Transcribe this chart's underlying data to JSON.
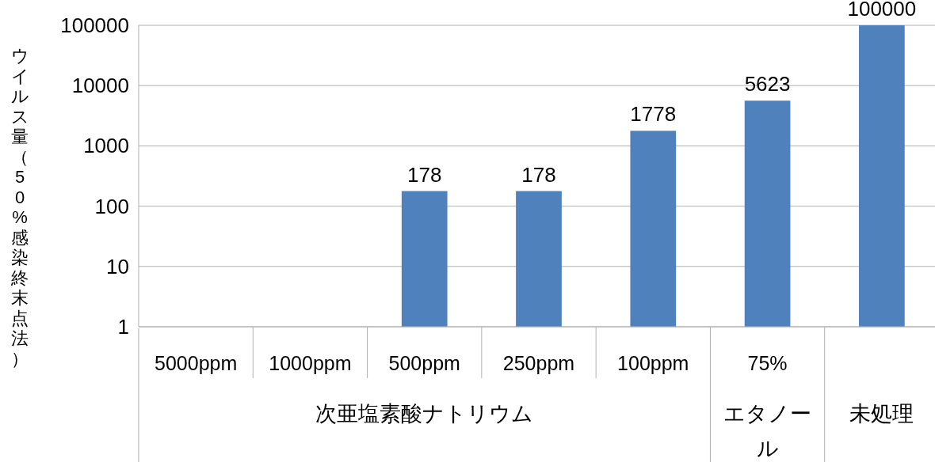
{
  "chart_data": {
    "type": "bar",
    "log": true,
    "ylabel": "ウイルス量（50%感染終末点法）",
    "categories": [
      "5000ppm",
      "1000ppm",
      "500ppm",
      "250ppm",
      "100ppm",
      "75%",
      null
    ],
    "values": [
      null,
      null,
      178,
      178,
      1778,
      5623,
      100000
    ],
    "color": "#4f81bd",
    "data_labels": true,
    "grid": "y",
    "ylim": [
      1,
      100000
    ],
    "yticks": [
      1,
      10,
      100,
      1000,
      10000,
      100000
    ],
    "annotations": [
      "次亜塩素酸ナトリウム",
      "エタノール",
      "未処理"
    ]
  }
}
